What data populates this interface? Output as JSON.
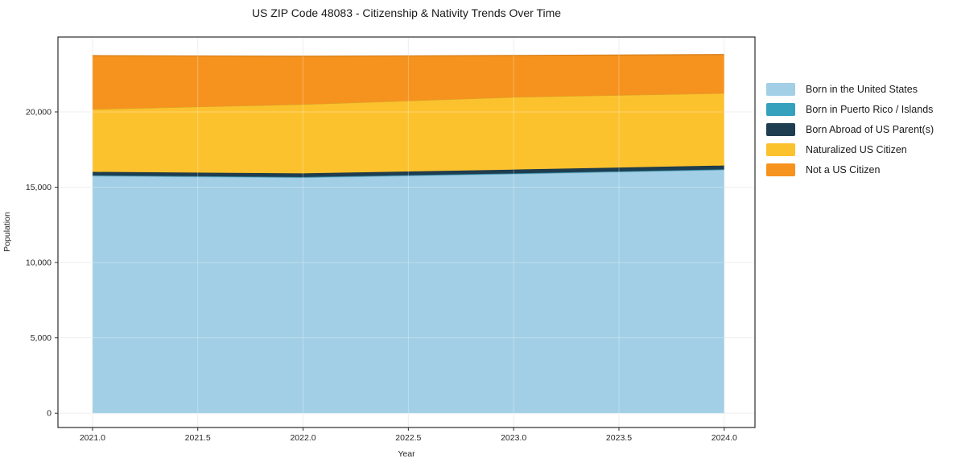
{
  "title": "US ZIP Code 48083 - Citizenship & Nativity Trends Over Time",
  "chart_data": {
    "type": "area",
    "stacked": true,
    "title": "US ZIP Code 48083 - Citizenship & Nativity Trends Over Time",
    "xlabel": "Year",
    "ylabel": "Population",
    "x": [
      2021,
      2022,
      2023,
      2024
    ],
    "series": [
      {
        "name": "Born in the United States",
        "color": "#a2cfe6",
        "values": [
          15750,
          15640,
          15880,
          16150
        ]
      },
      {
        "name": "Born in Puerto Rico / Islands",
        "color": "#35a1bd",
        "values": [
          40,
          40,
          40,
          40
        ]
      },
      {
        "name": "Born Abroad of US Parent(s)",
        "color": "#1e3d50",
        "values": [
          230,
          240,
          250,
          250
        ]
      },
      {
        "name": "Naturalized US Citizen",
        "color": "#fcc22e",
        "values": [
          4160,
          4580,
          4810,
          4800
        ]
      },
      {
        "name": "Not a US Citizen",
        "color": "#f6921e",
        "values": [
          3560,
          3200,
          2770,
          2570
        ]
      }
    ],
    "totals": [
      23740,
      23700,
      23750,
      23810
    ],
    "xlim": [
      2020.836,
      2024.146
    ],
    "ylim": [
      -950,
      24970
    ],
    "xticks": {
      "values": [
        2021.0,
        2021.5,
        2022.0,
        2022.5,
        2023.0,
        2023.5,
        2024.0
      ],
      "labels": [
        "2021.0",
        "2021.5",
        "2022.0",
        "2022.5",
        "2023.0",
        "2023.5",
        "2024.0"
      ]
    },
    "yticks": {
      "values": [
        0,
        5000,
        10000,
        15000,
        20000
      ],
      "labels": [
        "0",
        "5,000",
        "10,000",
        "15,000",
        "20,000"
      ]
    },
    "grid": true,
    "grid_color": "#e9e9e9",
    "frame_color": "#2b2b2b",
    "tick_label_color": "#262626",
    "legend_position": "right"
  }
}
